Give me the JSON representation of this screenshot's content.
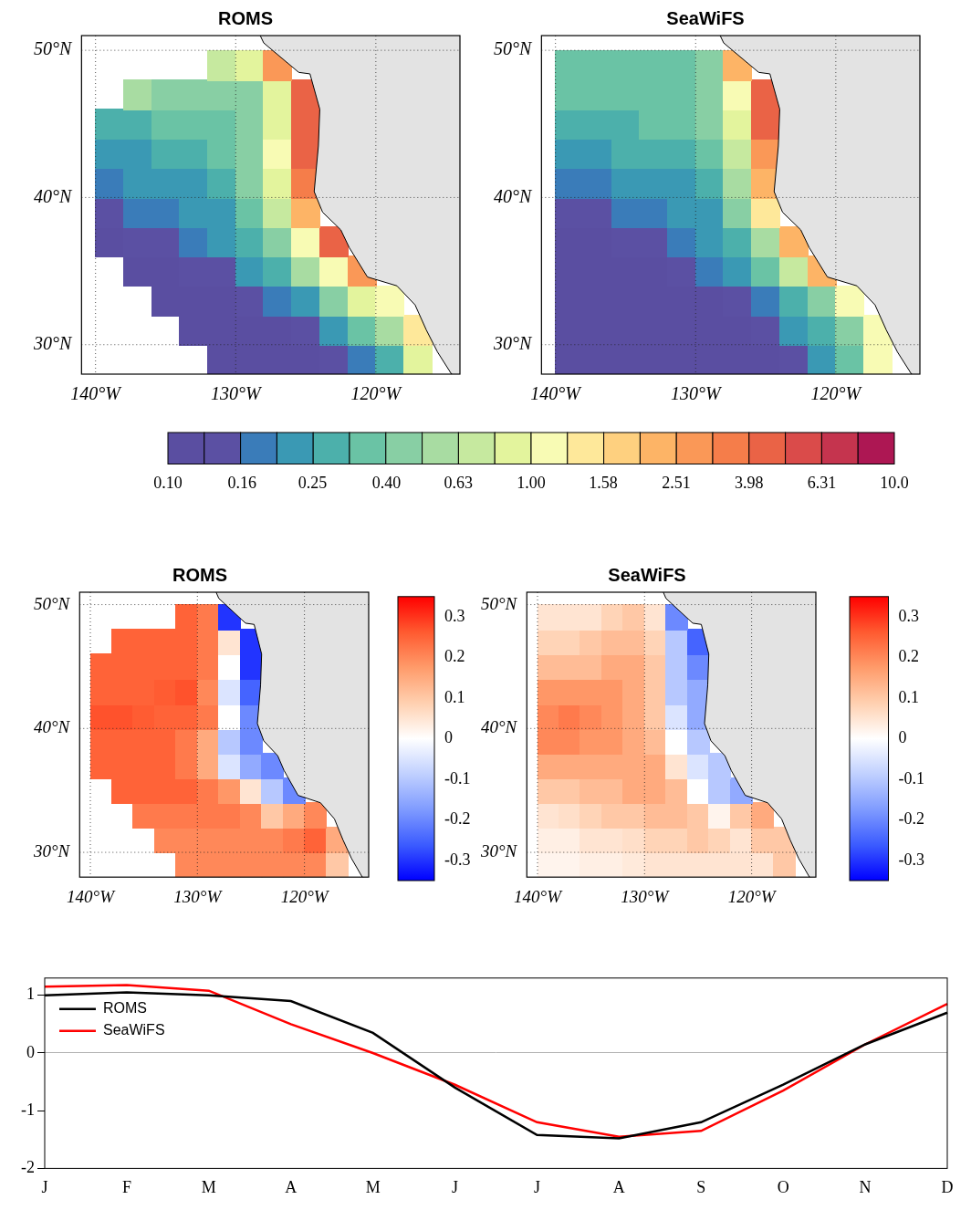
{
  "chart_data": [
    {
      "type": "heatmap",
      "title": "ROMS",
      "x": [
        -139,
        -137,
        -135,
        -133,
        -131,
        -129,
        -127,
        -125,
        -123,
        -121,
        -119,
        -117
      ],
      "y": [
        29,
        31,
        33,
        35,
        37,
        39,
        41,
        43,
        45,
        47,
        49
      ],
      "values": [
        [
          null,
          null,
          null,
          null,
          0.1,
          0.1,
          0.1,
          0.11,
          0.13,
          0.18,
          0.3,
          0.9
        ],
        [
          null,
          null,
          null,
          0.1,
          0.1,
          0.11,
          0.12,
          0.14,
          0.2,
          0.35,
          0.6,
          1.5
        ],
        [
          null,
          null,
          0.1,
          0.11,
          0.12,
          0.13,
          0.16,
          0.25,
          0.5,
          0.8,
          1.2,
          null
        ],
        [
          null,
          0.11,
          0.12,
          0.13,
          0.15,
          0.2,
          0.3,
          0.6,
          1.2,
          3,
          null,
          null
        ],
        [
          0.12,
          0.13,
          0.15,
          0.16,
          0.2,
          0.28,
          0.5,
          1.2,
          4,
          null,
          null,
          null
        ],
        [
          0.14,
          0.16,
          0.18,
          0.2,
          0.25,
          0.35,
          0.7,
          2,
          null,
          null,
          null,
          null
        ],
        [
          0.17,
          0.2,
          0.22,
          0.25,
          0.3,
          0.4,
          0.9,
          3.5,
          null,
          null,
          null,
          null
        ],
        [
          0.22,
          0.25,
          0.27,
          0.3,
          0.35,
          0.5,
          1,
          4,
          null,
          null,
          null,
          null
        ],
        [
          0.3,
          0.3,
          0.32,
          0.35,
          0.38,
          0.5,
          0.9,
          4,
          null,
          null,
          null,
          null
        ],
        [
          null,
          0.6,
          0.45,
          0.4,
          0.4,
          0.45,
          0.8,
          5,
          null,
          null,
          null,
          null
        ],
        [
          null,
          null,
          null,
          null,
          0.7,
          0.8,
          3,
          null,
          null,
          null,
          null,
          null
        ]
      ],
      "xlim": [
        -141,
        -114
      ],
      "ylim": [
        28,
        51
      ],
      "xticks": [
        {
          "value": -140,
          "label": "140°W"
        },
        {
          "value": -130,
          "label": "130°W"
        },
        {
          "value": -120,
          "label": "120°W"
        }
      ],
      "yticks": [
        {
          "value": 30,
          "label": "30°N"
        },
        {
          "value": 40,
          "label": "40°N"
        },
        {
          "value": 50,
          "label": "50°N"
        }
      ],
      "colorbar": {
        "log": true,
        "lim": [
          0.1,
          10
        ],
        "ticks": [
          {
            "value": 0.1,
            "label": "0.10"
          },
          0.16,
          0.25,
          {
            "value": 0.4,
            "label": "0.40"
          },
          0.63,
          {
            "value": 1,
            "label": "1.00"
          },
          1.58,
          2.51,
          3.98,
          6.31,
          {
            "value": 10,
            "label": "10.0"
          }
        ],
        "colors": [
          "#5a4ea1",
          "#5b50a3",
          "#3a7cb9",
          "#3a99b4",
          "#4cb0ab",
          "#6ac3a5",
          "#88cfa4",
          "#a8dca2",
          "#c6e99f",
          "#e3f49d",
          "#f8fbb4",
          "#fee89a",
          "#fed07f",
          "#fdb466",
          "#fa9857",
          "#f57d4a",
          "#ea6346",
          "#da4b4a",
          "#c5344e",
          "#ad1753"
        ]
      }
    },
    {
      "type": "heatmap",
      "title": "SeaWiFS",
      "x": [
        -139,
        -137,
        -135,
        -133,
        -131,
        -129,
        -127,
        -125,
        -123,
        -121,
        -119,
        -117
      ],
      "y": [
        29,
        31,
        33,
        35,
        37,
        39,
        41,
        43,
        45,
        47,
        49
      ],
      "values": [
        [
          0.1,
          0.1,
          0.1,
          0.1,
          0.1,
          0.1,
          0.11,
          0.12,
          0.14,
          0.2,
          0.35,
          1
        ],
        [
          0.1,
          0.1,
          0.1,
          0.1,
          0.1,
          0.11,
          0.12,
          0.15,
          0.2,
          0.3,
          0.5,
          1.2
        ],
        [
          0.1,
          0.1,
          0.1,
          0.1,
          0.11,
          0.12,
          0.14,
          0.18,
          0.3,
          0.5,
          1,
          null
        ],
        [
          0.1,
          0.1,
          0.11,
          0.12,
          0.13,
          0.16,
          0.22,
          0.35,
          0.7,
          2,
          null,
          null
        ],
        [
          0.11,
          0.12,
          0.13,
          0.14,
          0.16,
          0.2,
          0.3,
          0.6,
          2.5,
          null,
          null,
          null
        ],
        [
          0.14,
          0.15,
          0.16,
          0.18,
          0.2,
          0.25,
          0.45,
          1.5,
          null,
          null,
          null,
          null
        ],
        [
          0.17,
          0.18,
          0.2,
          0.22,
          0.25,
          0.3,
          0.6,
          2.5,
          null,
          null,
          null,
          null
        ],
        [
          0.22,
          0.24,
          0.26,
          0.28,
          0.3,
          0.35,
          0.7,
          3,
          null,
          null,
          null,
          null
        ],
        [
          0.28,
          0.3,
          0.3,
          0.32,
          0.35,
          0.4,
          0.8,
          4,
          null,
          null,
          null,
          null
        ],
        [
          0.32,
          0.33,
          0.34,
          0.35,
          0.38,
          0.45,
          1,
          5,
          null,
          null,
          null,
          null
        ],
        [
          0.35,
          0.35,
          0.35,
          0.35,
          0.38,
          0.45,
          2.5,
          null,
          null,
          null,
          null,
          null
        ]
      ],
      "xlim": [
        -141,
        -114
      ],
      "ylim": [
        28,
        51
      ],
      "xticks": [
        {
          "value": -140,
          "label": "140°W"
        },
        {
          "value": -130,
          "label": "130°W"
        },
        {
          "value": -120,
          "label": "120°W"
        }
      ],
      "yticks": [
        {
          "value": 30,
          "label": "30°N"
        },
        {
          "value": 40,
          "label": "40°N"
        },
        {
          "value": 50,
          "label": "50°N"
        }
      ],
      "colorbar": {
        "log": true,
        "lim": [
          0.1,
          10
        ],
        "ticks": [
          {
            "value": 0.1,
            "label": "0.10"
          },
          0.16,
          0.25,
          {
            "value": 0.4,
            "label": "0.40"
          },
          0.63,
          {
            "value": 1,
            "label": "1.00"
          },
          1.58,
          2.51,
          3.98,
          6.31,
          {
            "value": 10,
            "label": "10.0"
          }
        ],
        "colors": [
          "#5a4ea1",
          "#5b50a3",
          "#3a7cb9",
          "#3a99b4",
          "#4cb0ab",
          "#6ac3a5",
          "#88cfa4",
          "#a8dca2",
          "#c6e99f",
          "#e3f49d",
          "#f8fbb4",
          "#fee89a",
          "#fed07f",
          "#fdb466",
          "#fa9857",
          "#f57d4a",
          "#ea6346",
          "#da4b4a",
          "#c5344e",
          "#ad1753"
        ]
      }
    },
    {
      "type": "heatmap",
      "title": "ROMS",
      "x": [
        -139,
        -137,
        -135,
        -133,
        -131,
        -129,
        -127,
        -125,
        -123,
        -121,
        -119,
        -117
      ],
      "y": [
        29,
        31,
        33,
        35,
        37,
        39,
        41,
        43,
        45,
        47,
        49
      ],
      "values": [
        [
          null,
          null,
          null,
          null,
          0.2,
          0.2,
          0.2,
          0.2,
          0.2,
          0.2,
          0.2,
          0.1
        ],
        [
          null,
          null,
          null,
          0.2,
          0.2,
          0.2,
          0.2,
          0.2,
          0.2,
          0.22,
          0.25,
          0.15
        ],
        [
          null,
          null,
          0.22,
          0.22,
          0.22,
          0.22,
          0.22,
          0.2,
          0.1,
          0.15,
          0.2,
          null
        ],
        [
          null,
          0.25,
          0.25,
          0.25,
          0.25,
          0.22,
          0.18,
          0.05,
          -0.1,
          -0.2,
          null,
          null
        ],
        [
          0.25,
          0.25,
          0.25,
          0.25,
          0.22,
          0.15,
          -0.05,
          -0.15,
          -0.2,
          null,
          null,
          null
        ],
        [
          0.25,
          0.25,
          0.25,
          0.25,
          0.22,
          0.15,
          -0.1,
          -0.2,
          null,
          null,
          null,
          null
        ],
        [
          0.27,
          0.27,
          0.26,
          0.25,
          0.25,
          0.22,
          0,
          -0.2,
          null,
          null,
          null,
          null
        ],
        [
          0.25,
          0.25,
          0.25,
          0.26,
          0.27,
          0.2,
          -0.05,
          -0.25,
          null,
          null,
          null,
          null
        ],
        [
          0.25,
          0.25,
          0.25,
          0.25,
          0.25,
          0.22,
          0,
          -0.3,
          null,
          null,
          null,
          null
        ],
        [
          null,
          0.25,
          0.25,
          0.25,
          0.25,
          0.22,
          0.05,
          -0.3,
          null,
          null,
          null,
          null
        ],
        [
          null,
          null,
          null,
          null,
          0.25,
          0.22,
          -0.3,
          null,
          null,
          null,
          null,
          null
        ]
      ],
      "xlim": [
        -141,
        -114
      ],
      "ylim": [
        28,
        51
      ],
      "xticks": [
        {
          "value": -140,
          "label": "140°W"
        },
        {
          "value": -130,
          "label": "130°W"
        },
        {
          "value": -120,
          "label": "120°W"
        }
      ],
      "yticks": [
        {
          "value": 30,
          "label": "30°N"
        },
        {
          "value": 40,
          "label": "40°N"
        },
        {
          "value": 50,
          "label": "50°N"
        }
      ],
      "colorbar": {
        "lim": [
          -0.35,
          0.35
        ],
        "ticks": [
          -0.3,
          -0.2,
          -0.1,
          0,
          0.1,
          0.2,
          0.3
        ],
        "colors": [
          "#0000ff",
          "#3b5bff",
          "#7f9bff",
          "#c0d0ff",
          "#ffffff",
          "#ffd0b0",
          "#ff9b6a",
          "#ff5a30",
          "#ff0000"
        ]
      }
    },
    {
      "type": "heatmap",
      "title": "SeaWiFS",
      "x": [
        -139,
        -137,
        -135,
        -133,
        -131,
        -129,
        -127,
        -125,
        -123,
        -121,
        -119,
        -117
      ],
      "y": [
        29,
        31,
        33,
        35,
        37,
        39,
        41,
        43,
        45,
        47,
        49
      ],
      "values": [
        [
          0.02,
          0.02,
          0.03,
          0.03,
          0.04,
          0.05,
          0.05,
          0.05,
          0.05,
          0.05,
          0.05,
          0.1
        ],
        [
          0.03,
          0.03,
          0.05,
          0.05,
          0.06,
          0.08,
          0.08,
          0.1,
          0.08,
          0.05,
          0.1,
          0.1
        ],
        [
          0.05,
          0.06,
          0.08,
          0.1,
          0.1,
          0.12,
          0.12,
          0.1,
          0.02,
          0.1,
          0.15,
          null
        ],
        [
          0.1,
          0.1,
          0.12,
          0.12,
          0.15,
          0.15,
          0.12,
          0,
          -0.1,
          -0.15,
          null,
          null
        ],
        [
          0.15,
          0.15,
          0.15,
          0.15,
          0.15,
          0.15,
          0.05,
          -0.05,
          -0.1,
          null,
          null,
          null
        ],
        [
          0.2,
          0.2,
          0.18,
          0.18,
          0.15,
          0.12,
          0,
          -0.1,
          null,
          null,
          null,
          null
        ],
        [
          0.2,
          0.22,
          0.2,
          0.18,
          0.15,
          0.1,
          -0.05,
          -0.15,
          null,
          null,
          null,
          null
        ],
        [
          0.18,
          0.18,
          0.18,
          0.18,
          0.15,
          0.1,
          -0.1,
          -0.15,
          null,
          null,
          null,
          null
        ],
        [
          0.12,
          0.12,
          0.12,
          0.15,
          0.15,
          0.1,
          -0.1,
          -0.2,
          null,
          null,
          null,
          null
        ],
        [
          0.08,
          0.08,
          0.1,
          0.12,
          0.12,
          0.08,
          -0.1,
          -0.25,
          null,
          null,
          null,
          null
        ],
        [
          0.05,
          0.05,
          0.05,
          0.08,
          0.1,
          0.05,
          -0.2,
          null,
          null,
          null,
          null,
          null
        ]
      ],
      "xlim": [
        -141,
        -114
      ],
      "ylim": [
        28,
        51
      ],
      "xticks": [
        {
          "value": -140,
          "label": "140°W"
        },
        {
          "value": -130,
          "label": "130°W"
        },
        {
          "value": -120,
          "label": "120°W"
        }
      ],
      "yticks": [
        {
          "value": 30,
          "label": "30°N"
        },
        {
          "value": 40,
          "label": "40°N"
        },
        {
          "value": 50,
          "label": "50°N"
        }
      ],
      "colorbar": {
        "lim": [
          -0.35,
          0.35
        ],
        "ticks": [
          -0.3,
          -0.2,
          -0.1,
          0,
          0.1,
          0.2,
          0.3
        ],
        "colors": [
          "#0000ff",
          "#3b5bff",
          "#7f9bff",
          "#c0d0ff",
          "#ffffff",
          "#ffd0b0",
          "#ff9b6a",
          "#ff5a30",
          "#ff0000"
        ]
      }
    },
    {
      "type": "line",
      "categories": [
        "J",
        "F",
        "M",
        "A",
        "M",
        "J",
        "J",
        "A",
        "S",
        "O",
        "N",
        "D"
      ],
      "series": [
        {
          "name": "ROMS",
          "color": "#000000",
          "values": [
            1.0,
            1.05,
            1.0,
            0.9,
            0.35,
            -0.6,
            -1.42,
            -1.48,
            -1.2,
            -0.55,
            0.15,
            0.7
          ]
        },
        {
          "name": "SeaWiFS",
          "color": "#ff0000",
          "values": [
            1.15,
            1.18,
            1.08,
            0.5,
            0.0,
            -0.55,
            -1.2,
            -1.45,
            -1.35,
            -0.65,
            0.15,
            0.85
          ]
        }
      ],
      "ylim": [
        -2,
        1.3
      ],
      "yticks": [
        -2,
        -1,
        0,
        1
      ],
      "grid": false,
      "legend": "upper left"
    }
  ]
}
